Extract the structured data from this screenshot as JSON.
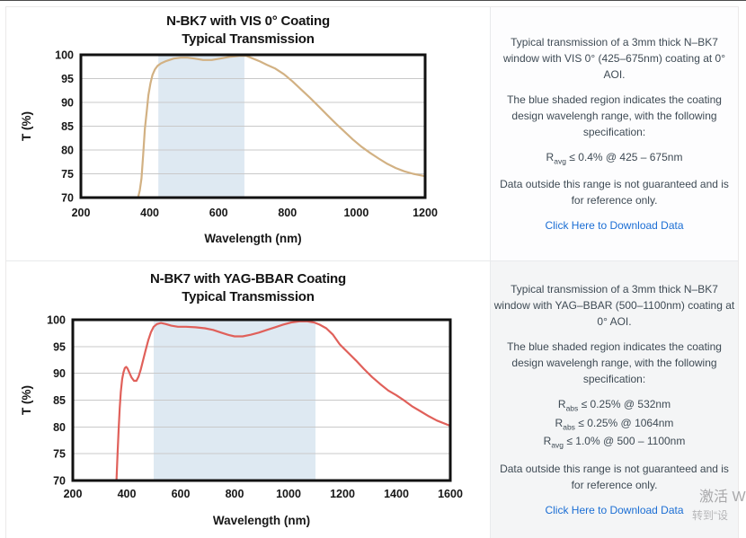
{
  "colors": {
    "panel_text": "#3e4a54",
    "link_blue": "#1b6ed4",
    "vis_curve_tan": "#d2b183",
    "yag_curve_red": "#e0605a",
    "shaded_region_blue": "#dee9f2",
    "gridline_gray": "#c9c9c9",
    "plot_border_black": "#111111"
  },
  "chart_data": [
    {
      "type": "line",
      "title_line1": "N-BK7 with VIS 0° Coating",
      "title_line2": "Typical Transmission",
      "xlabel": "Wavelength (nm)",
      "ylabel": "T (%)",
      "xlim": [
        200,
        1200
      ],
      "ylim": [
        70,
        100
      ],
      "x_ticks": [
        200,
        400,
        600,
        800,
        1000,
        1200
      ],
      "y_ticks": [
        70,
        75,
        80,
        85,
        90,
        95,
        100
      ],
      "grid": "horizontal",
      "shaded_region": [
        425,
        675
      ],
      "region_color": "#dee9f2",
      "line_color": "#d2b183",
      "series_name": "Typical transmission, 3mm N-BK7 window, VIS 0° coating",
      "series": [
        [
          366,
          70
        ],
        [
          371,
          71.5
        ],
        [
          376,
          74
        ],
        [
          381,
          79
        ],
        [
          386,
          84.5
        ],
        [
          391,
          88
        ],
        [
          396,
          91.5
        ],
        [
          402,
          94
        ],
        [
          408,
          95.8
        ],
        [
          415,
          96.9
        ],
        [
          423,
          97.7
        ],
        [
          433,
          98.2
        ],
        [
          448,
          98.7
        ],
        [
          470,
          99.2
        ],
        [
          490,
          99.4
        ],
        [
          510,
          99.4
        ],
        [
          530,
          99.2
        ],
        [
          555,
          98.9
        ],
        [
          580,
          98.9
        ],
        [
          605,
          99.2
        ],
        [
          635,
          99.6
        ],
        [
          660,
          99.8
        ],
        [
          680,
          99.8
        ],
        [
          700,
          99.2
        ],
        [
          720,
          98.6
        ],
        [
          740,
          97.9
        ],
        [
          765,
          97.1
        ],
        [
          790,
          95.9
        ],
        [
          815,
          94.4
        ],
        [
          840,
          92.7
        ],
        [
          865,
          91
        ],
        [
          890,
          89.2
        ],
        [
          915,
          87.4
        ],
        [
          940,
          85.6
        ],
        [
          965,
          83.9
        ],
        [
          990,
          82.2
        ],
        [
          1015,
          80.7
        ],
        [
          1040,
          79.4
        ],
        [
          1065,
          78.2
        ],
        [
          1090,
          77.1
        ],
        [
          1115,
          76.2
        ],
        [
          1140,
          75.5
        ],
        [
          1165,
          75
        ],
        [
          1185,
          74.7
        ],
        [
          1200,
          74.5
        ]
      ]
    },
    {
      "type": "line",
      "title_line1": "N-BK7 with YAG-BBAR Coating",
      "title_line2": "Typical Transmission",
      "xlabel": "Wavelength (nm)",
      "ylabel": "T (%)",
      "xlim": [
        200,
        1600
      ],
      "ylim": [
        70,
        100
      ],
      "x_ticks": [
        200,
        400,
        600,
        800,
        1000,
        1200,
        1400,
        1600
      ],
      "y_ticks": [
        70,
        75,
        80,
        85,
        90,
        95,
        100
      ],
      "grid": "horizontal",
      "shaded_region": [
        500,
        1100
      ],
      "region_color": "#dee9f2",
      "line_color": "#e0605a",
      "series_name": "Typical transmission, 3mm N-BK7 window, YAG-BBAR coating",
      "series": [
        [
          362,
          70
        ],
        [
          366,
          75
        ],
        [
          370,
          79.5
        ],
        [
          374,
          83.5
        ],
        [
          378,
          86.5
        ],
        [
          383,
          88.9
        ],
        [
          388,
          90.2
        ],
        [
          393,
          91
        ],
        [
          398,
          91.2
        ],
        [
          403,
          90.9
        ],
        [
          410,
          90.1
        ],
        [
          418,
          89.2
        ],
        [
          427,
          88.6
        ],
        [
          436,
          88.6
        ],
        [
          444,
          89.4
        ],
        [
          452,
          90.7
        ],
        [
          460,
          92.3
        ],
        [
          470,
          94.3
        ],
        [
          480,
          96.2
        ],
        [
          490,
          97.7
        ],
        [
          500,
          98.7
        ],
        [
          512,
          99.2
        ],
        [
          527,
          99.4
        ],
        [
          545,
          99.2
        ],
        [
          565,
          98.9
        ],
        [
          590,
          98.7
        ],
        [
          620,
          98.7
        ],
        [
          655,
          98.6
        ],
        [
          690,
          98.4
        ],
        [
          720,
          98.1
        ],
        [
          750,
          97.6
        ],
        [
          775,
          97.2
        ],
        [
          800,
          96.9
        ],
        [
          830,
          96.9
        ],
        [
          860,
          97.2
        ],
        [
          890,
          97.6
        ],
        [
          920,
          98.1
        ],
        [
          950,
          98.6
        ],
        [
          980,
          99.1
        ],
        [
          1010,
          99.5
        ],
        [
          1040,
          99.7
        ],
        [
          1070,
          99.7
        ],
        [
          1095,
          99.5
        ],
        [
          1115,
          99.1
        ],
        [
          1140,
          98.4
        ],
        [
          1165,
          97.2
        ],
        [
          1190,
          95.4
        ],
        [
          1220,
          93.9
        ],
        [
          1250,
          92.4
        ],
        [
          1280,
          90.8
        ],
        [
          1310,
          89.3
        ],
        [
          1340,
          88
        ],
        [
          1370,
          86.8
        ],
        [
          1400,
          85.9
        ],
        [
          1430,
          84.9
        ],
        [
          1460,
          83.8
        ],
        [
          1490,
          82.9
        ],
        [
          1520,
          82
        ],
        [
          1550,
          81.2
        ],
        [
          1600,
          80.2
        ]
      ]
    }
  ],
  "panels": [
    {
      "paragraph1": "Typical transmission of a 3mm thick N–BK7 window with VIS 0° (425–675nm) coating at 0° AOI.",
      "paragraph2": "The blue shaded region indicates the coating design wavelengh range, with the following specification:",
      "specs": [
        {
          "base": "R",
          "sub": "avg",
          "rest": " ≤ 0.4% @ 425 – 675nm"
        }
      ],
      "paragraph3": "Data outside this range is not guaranteed and is for reference only.",
      "link": "Click Here to Download Data"
    },
    {
      "paragraph1": "Typical transmission of a 3mm thick N–BK7 window with YAG–BBAR (500–1100nm) coating at 0° AOI.",
      "paragraph2": "The blue shaded region indicates the coating design wavelengh range, with the following specification:",
      "specs": [
        {
          "base": "R",
          "sub": "abs",
          "rest": " ≤ 0.25% @ 532nm"
        },
        {
          "base": "R",
          "sub": "abs",
          "rest": " ≤ 0.25% @ 1064nm"
        },
        {
          "base": "R",
          "sub": "avg",
          "rest": " ≤ 1.0% @ 500 – 1100nm"
        }
      ],
      "paragraph3": "Data outside this range is not guaranteed and is for reference only.",
      "link": "Click Here to Download Data"
    }
  ],
  "watermark": {
    "line1": "激活 W",
    "line2": "转到“设"
  }
}
